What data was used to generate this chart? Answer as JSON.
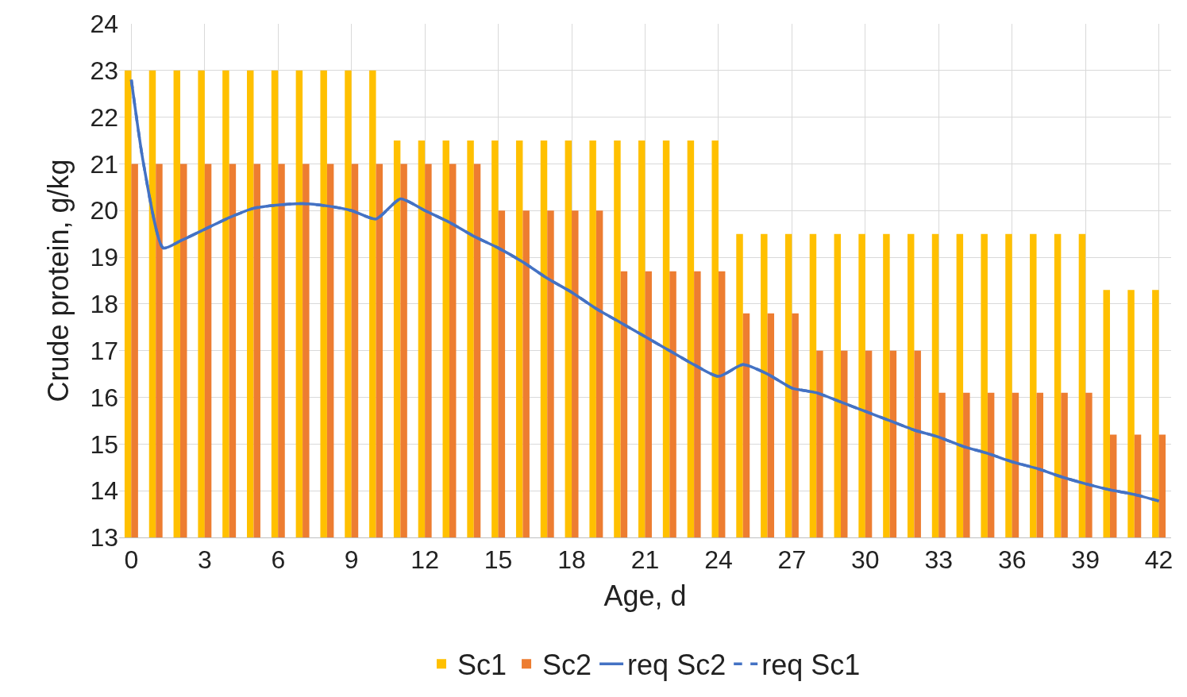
{
  "chart_data": {
    "type": "bar",
    "xlabel": "Age, d",
    "ylabel": "Crude protein, g/kg",
    "x": [
      0,
      1,
      2,
      3,
      4,
      5,
      6,
      7,
      8,
      9,
      10,
      11,
      12,
      13,
      14,
      15,
      16,
      17,
      18,
      19,
      20,
      21,
      22,
      23,
      24,
      25,
      26,
      27,
      28,
      29,
      30,
      31,
      32,
      33,
      34,
      35,
      36,
      37,
      38,
      39,
      40,
      41,
      42
    ],
    "series": [
      {
        "name": "Sc1",
        "color": "#ffc000",
        "values": [
          23,
          23,
          23,
          23,
          23,
          23,
          23,
          23,
          23,
          23,
          23,
          21.5,
          21.5,
          21.5,
          21.5,
          21.5,
          21.5,
          21.5,
          21.5,
          21.5,
          21.5,
          21.5,
          21.5,
          21.5,
          21.5,
          19.5,
          19.5,
          19.5,
          19.5,
          19.5,
          19.5,
          19.5,
          19.5,
          19.5,
          19.5,
          19.5,
          19.5,
          19.5,
          19.5,
          19.5,
          18.3,
          18.3,
          18.3
        ]
      },
      {
        "name": "Sc2",
        "color": "#ed7d31",
        "values": [
          21,
          21,
          21,
          21,
          21,
          21,
          21,
          21,
          21,
          21,
          21,
          21,
          21,
          21,
          21,
          20,
          20,
          20,
          20,
          20,
          18.7,
          18.7,
          18.7,
          18.7,
          18.7,
          17.8,
          17.8,
          17.8,
          17,
          17,
          17,
          17,
          17,
          16.1,
          16.1,
          16.1,
          16.1,
          16.1,
          16.1,
          16.1,
          15.2,
          15.2,
          15.2
        ]
      },
      {
        "name": "req Sc2",
        "type": "line",
        "color": "#4472c4",
        "line_style": "solid",
        "x": [
          0,
          0.5,
          1.3,
          2,
          3,
          4,
          5,
          6,
          7,
          8,
          9,
          10,
          11,
          12,
          13,
          14,
          15,
          16,
          17,
          18,
          19,
          20,
          21,
          22,
          23,
          24,
          25,
          26,
          27,
          28,
          29,
          30,
          31,
          32,
          33,
          34,
          35,
          36,
          37,
          38,
          39,
          40,
          41,
          42
        ],
        "values": [
          22.8,
          21,
          19.2,
          19.35,
          19.6,
          19.85,
          20.05,
          20.12,
          20.15,
          20.1,
          20,
          19.82,
          20.25,
          20,
          19.75,
          19.45,
          19.2,
          18.9,
          18.55,
          18.25,
          17.9,
          17.6,
          17.3,
          17,
          16.7,
          16.45,
          16.7,
          16.5,
          16.2,
          16.1,
          15.9,
          15.7,
          15.5,
          15.3,
          15.15,
          14.95,
          14.8,
          14.62,
          14.48,
          14.3,
          14.15,
          14.02,
          13.92,
          13.78
        ]
      },
      {
        "name": "req Sc1",
        "type": "line",
        "color": "#4472c4",
        "line_style": "dashed",
        "x": [
          0,
          0.5,
          1.3,
          2,
          3,
          4,
          5,
          6,
          7,
          8,
          9,
          10,
          11,
          12,
          13,
          14,
          15,
          16,
          17,
          18,
          19,
          20,
          21,
          22,
          23,
          24,
          25,
          26,
          27,
          28,
          29,
          30,
          31,
          32,
          33,
          34,
          35,
          36,
          37,
          38,
          39,
          40,
          41,
          42
        ],
        "values": [
          22.8,
          21,
          19.2,
          19.35,
          19.6,
          19.85,
          20.05,
          20.12,
          20.15,
          20.1,
          20,
          19.82,
          20.25,
          20,
          19.75,
          19.45,
          19.2,
          18.9,
          18.55,
          18.25,
          17.9,
          17.6,
          17.3,
          17,
          16.7,
          16.45,
          16.7,
          16.5,
          16.2,
          16.1,
          15.9,
          15.7,
          15.5,
          15.3,
          15.15,
          14.95,
          14.8,
          14.62,
          14.48,
          14.3,
          14.15,
          14.02,
          13.92,
          13.78
        ]
      }
    ],
    "xlim": [
      -0.5,
      42.5
    ],
    "xticks": [
      0,
      3,
      6,
      9,
      12,
      15,
      18,
      21,
      24,
      27,
      30,
      33,
      36,
      39,
      42
    ],
    "ylim": [
      13,
      24
    ],
    "yticks": [
      13,
      14,
      15,
      16,
      17,
      18,
      19,
      20,
      21,
      22,
      23,
      24
    ],
    "grid": true,
    "legend": "bottom"
  }
}
